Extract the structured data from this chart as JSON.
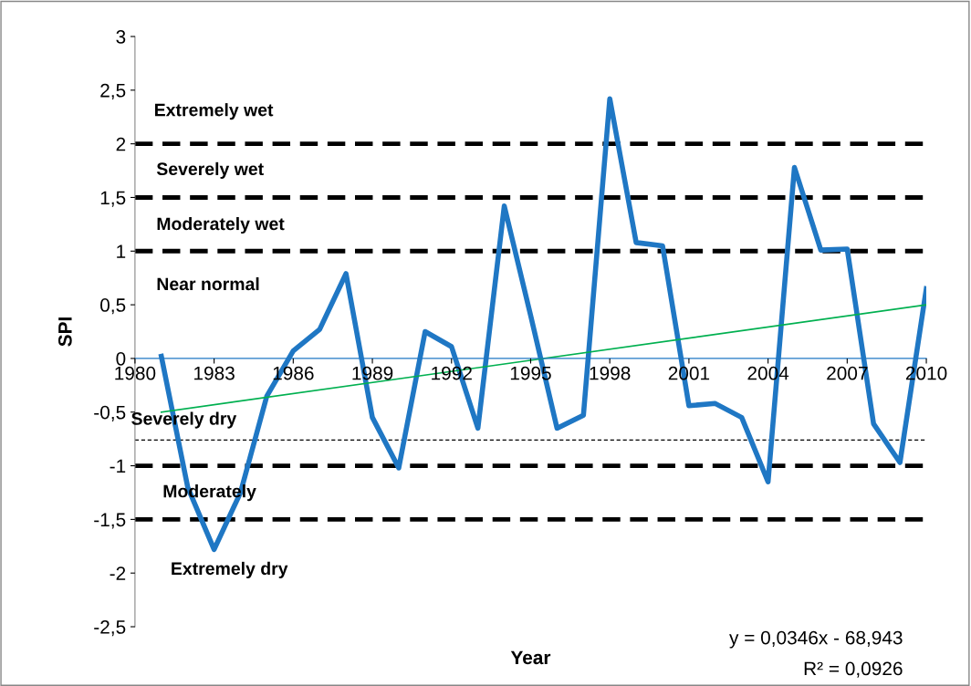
{
  "chart_data": {
    "type": "line",
    "xlabel": "Year",
    "ylabel": "SPI",
    "x": [
      1981,
      1982,
      1983,
      1984,
      1985,
      1986,
      1987,
      1988,
      1989,
      1990,
      1991,
      1992,
      1993,
      1994,
      1995,
      1996,
      1997,
      1998,
      1999,
      2000,
      2001,
      2002,
      2003,
      2004,
      2005,
      2006,
      2007,
      2008,
      2009,
      2010
    ],
    "series": [
      {
        "color": "#1f77c4",
        "values": [
          0.02,
          -1.2,
          -1.78,
          -1.25,
          -0.35,
          0.07,
          0.27,
          0.79,
          -0.55,
          -1.02,
          0.25,
          0.11,
          -0.65,
          1.42,
          0.4,
          -0.65,
          -0.53,
          2.42,
          1.08,
          1.05,
          -0.44,
          -0.42,
          -0.55,
          -1.15,
          1.78,
          1.01,
          1.02,
          -0.61,
          -0.97,
          0.65
        ]
      },
      {
        "type": "line",
        "color": "#00b050",
        "x": [
          1981,
          2010
        ],
        "values": [
          -0.5,
          0.5
        ]
      }
    ],
    "xlim": [
      1980,
      2010
    ],
    "xticks": [
      1980,
      1983,
      1986,
      1989,
      1992,
      1995,
      1998,
      2001,
      2004,
      2007,
      2010
    ],
    "ylim": [
      -2.5,
      3
    ],
    "yticks": [
      {
        "value": -2.5,
        "label": "-2,5"
      },
      -2,
      {
        "value": -1.5,
        "label": "-1,5"
      },
      -1,
      {
        "value": -0.5,
        "label": "-0,5"
      },
      0,
      {
        "value": 0.5,
        "label": "0,5"
      },
      1,
      {
        "value": 1.5,
        "label": "1,5"
      },
      2,
      {
        "value": 2.5,
        "label": "2,5"
      },
      3
    ],
    "ref_lines": [
      {
        "axis": "y",
        "value": 2,
        "color": "#000000",
        "line_style": "dashed"
      },
      {
        "axis": "y",
        "value": 1.5,
        "color": "#000000",
        "line_style": "dashed"
      },
      {
        "axis": "y",
        "value": 1,
        "color": "#000000",
        "line_style": "dashed"
      },
      {
        "axis": "y",
        "value": -0.76,
        "color": "#000000",
        "line_style": "dotted"
      },
      {
        "axis": "y",
        "value": -1,
        "color": "#000000",
        "line_style": "dashed"
      },
      {
        "axis": "y",
        "value": -1.5,
        "color": "#000000",
        "line_style": "dashed"
      }
    ],
    "annotations": [
      "Extremely wet",
      "Severely wet",
      "Moderately wet",
      "Near normal",
      "Severely dry",
      "Moderately",
      "Extremely dry",
      "y = 0,0346x - 68,943",
      "R² = 0,0926"
    ],
    "grid": false,
    "legend": false,
    "marker": "none",
    "line_style": "solid"
  }
}
